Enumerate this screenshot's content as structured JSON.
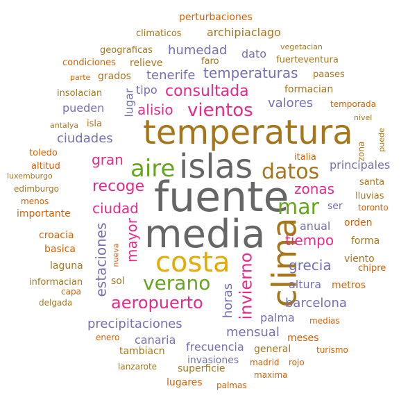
{
  "colors": {
    "gray": "#666666",
    "olive": "#a6761d",
    "green": "#66a61e",
    "pink": "#e7298a",
    "purple": "#7570b3",
    "orange": "#d95f02",
    "gold": "#e6ab02"
  },
  "words": [
    "fuente",
    "media",
    "temperatura",
    "islas",
    "clima",
    "costa",
    "aire",
    "datos",
    "mar",
    "vientos",
    "verano",
    "aeropuerto",
    "invierno",
    "consultada",
    "recoge",
    "temperaturas",
    "zonas",
    "ciudad",
    "tiempo",
    "alisio",
    "mayor",
    "estaciones",
    "gran",
    "grecia",
    "precipitaciones",
    "valores",
    "ciudades",
    "tenerife",
    "barcelona",
    "humedad",
    "mensual",
    "horas",
    "principales",
    "archipiaclago",
    "palma",
    "altura",
    "dato",
    "anual",
    "pueden",
    "canaria",
    "frecuencia",
    "lugar",
    "tipo",
    "ser",
    "orden",
    "formacian",
    "metros",
    "invasiones",
    "perturbaciones",
    "climaticos",
    "geograficas",
    "relieve",
    "condiciones",
    "faro",
    "vegetacian",
    "fuerteventura",
    "grados",
    "paases",
    "parte",
    "insolacian",
    "temporada",
    "isla",
    "antalya",
    "nivel",
    "toledo",
    "altitud",
    "luxemburgo",
    "edimburgo",
    "menos",
    "importante",
    "santa",
    "lluvias",
    "toronto",
    "croacia",
    "basica",
    "laguna",
    "informacian",
    "capa",
    "delgada",
    "nueva",
    "sol",
    "enero",
    "tambiacn",
    "lanzarote",
    "lugares",
    "superficie",
    "palmas",
    "maxima",
    "madrid",
    "rojo",
    "general",
    "meses",
    "turismo",
    "medias",
    "chipre",
    "viento",
    "forma",
    "zona",
    "puede",
    "italia"
  ]
}
